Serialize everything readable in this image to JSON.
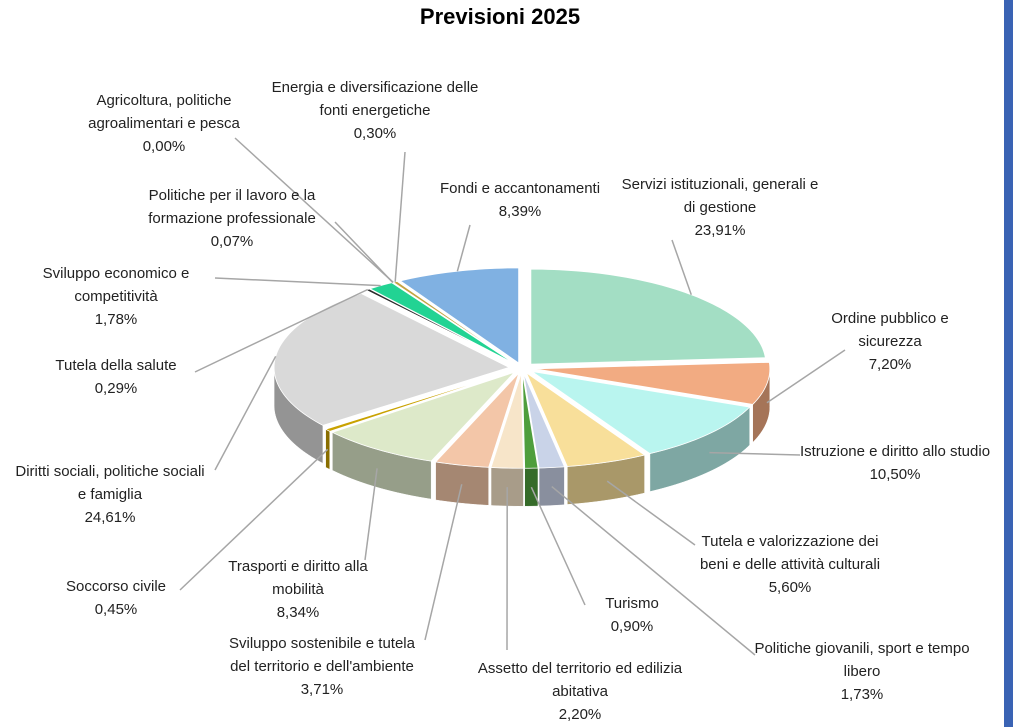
{
  "chart_data": {
    "type": "pie",
    "title": "Previsioni 2025",
    "categories": [
      "Servizi istituzionali, generali e di gestione",
      "Ordine pubblico e sicurezza",
      "Istruzione e diritto allo studio",
      "Tutela e valorizzazione dei beni e delle attività culturali",
      "Politiche giovanili, sport e tempo libero",
      "Turismo",
      "Assetto del territorio ed edilizia abitativa",
      "Sviluppo sostenibile e tutela del territorio e dell'ambiente",
      "Trasporti e diritto alla mobilità",
      "Soccorso civile",
      "Diritti sociali, politiche sociali e famiglia",
      "Tutela della salute",
      "Sviluppo economico e competitività",
      "Politiche per il lavoro e la formazione professionale",
      "Agricoltura, politiche agroalimentari e pesca",
      "Energia e diversificazione delle fonti energetiche",
      "Fondi e accantonamenti"
    ],
    "values": [
      23.91,
      7.2,
      10.5,
      5.6,
      1.73,
      0.9,
      2.2,
      3.71,
      8.34,
      0.45,
      24.61,
      0.29,
      1.78,
      0.07,
      0.0,
      0.3,
      8.39
    ],
    "value_labels": [
      "23,91%",
      "7,20%",
      "10,50%",
      "5,60%",
      "1,73%",
      "0,90%",
      "2,20%",
      "3,71%",
      "8,34%",
      "0,45%",
      "24,61%",
      "0,29%",
      "1,78%",
      "0,07%",
      "0,00%",
      "0,30%",
      "8,39%"
    ],
    "colors": [
      "#a3dec4",
      "#f2ab82",
      "#b9f5ef",
      "#f8df9a",
      "#c9d3e8",
      "#4f9e3c",
      "#f7e5c9",
      "#f3c6a8",
      "#dde9c9",
      "#c9a200",
      "#d9d9d9",
      "#2a2a2a",
      "#22d393",
      "#6a8fb8",
      "#999999",
      "#c4a343",
      "#80b1e2"
    ]
  }
}
